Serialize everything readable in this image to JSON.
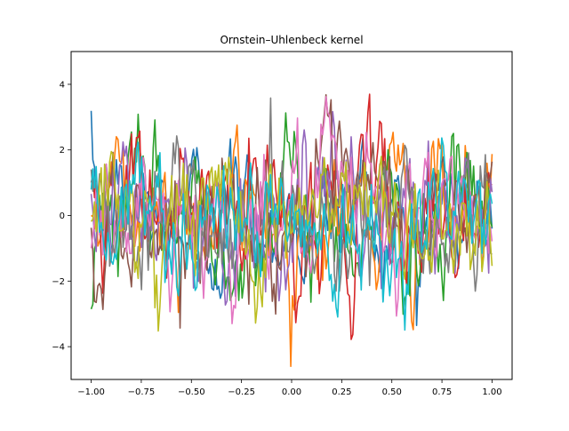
{
  "chart_data": {
    "type": "line",
    "title": "Ornstein–Uhlenbeck kernel",
    "xlabel": "",
    "ylabel": "",
    "xlim": [
      -1.1,
      1.1
    ],
    "ylim": [
      -5,
      5
    ],
    "grid": false,
    "legend": "none",
    "x_ticks": [
      -1.0,
      -0.75,
      -0.5,
      -0.25,
      0.0,
      0.25,
      0.5,
      0.75,
      1.0
    ],
    "x_tick_labels": [
      "−1.00",
      "−0.75",
      "−0.50",
      "−0.25",
      "0.00",
      "0.25",
      "0.50",
      "0.75",
      "1.00"
    ],
    "y_ticks": [
      -4,
      -2,
      0,
      2,
      4
    ],
    "y_tick_labels": [
      "−4",
      "−2",
      "0",
      "2",
      "4"
    ],
    "x_range": [
      -1.0,
      1.0
    ],
    "num_points": 240,
    "series_colors": [
      "#1f77b4",
      "#ff7f0e",
      "#2ca02c",
      "#d62728",
      "#9467bd",
      "#8c564b",
      "#e377c2",
      "#7f7f7f",
      "#bcbd22",
      "#17becf"
    ],
    "series_count": 10
  }
}
